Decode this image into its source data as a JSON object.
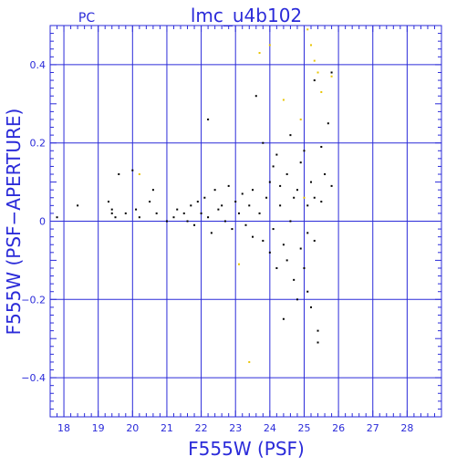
{
  "header": {
    "left_label": "PC",
    "title": "lmc_u4b102"
  },
  "colors": {
    "axis": "#2b2bd9",
    "grid": "#2b2bd9",
    "points_primary": "#000000",
    "points_secondary": "#e8c400"
  },
  "chart_data": {
    "type": "scatter",
    "title": "lmc_u4b102",
    "xlabel": "F555W (PSF)",
    "ylabel": "F555W (PSF−APERTURE)",
    "xlim": [
      17.6,
      29.0
    ],
    "ylim": [
      -0.5,
      0.5
    ],
    "xticks": [
      18,
      19,
      20,
      21,
      22,
      23,
      24,
      25,
      26,
      27,
      28
    ],
    "yticks": [
      -0.4,
      -0.2,
      0,
      0.2,
      0.4
    ],
    "ytick_labels": [
      "−0.4",
      "−0.2",
      "0",
      "0.2",
      "0.4"
    ],
    "grid": true,
    "series": [
      {
        "color": "#000000",
        "points": [
          [
            17.8,
            0.01
          ],
          [
            18.4,
            0.04
          ],
          [
            19.3,
            0.05
          ],
          [
            19.4,
            0.02
          ],
          [
            19.4,
            0.03
          ],
          [
            19.5,
            0.01
          ],
          [
            19.6,
            0.12
          ],
          [
            19.8,
            0.02
          ],
          [
            20.0,
            0.13
          ],
          [
            20.1,
            0.03
          ],
          [
            20.2,
            0.01
          ],
          [
            20.5,
            0.05
          ],
          [
            20.6,
            0.08
          ],
          [
            20.7,
            0.02
          ],
          [
            21.0,
            0.0
          ],
          [
            21.2,
            0.01
          ],
          [
            21.3,
            0.03
          ],
          [
            21.5,
            0.02
          ],
          [
            21.6,
            0.0
          ],
          [
            21.7,
            0.04
          ],
          [
            21.8,
            -0.01
          ],
          [
            21.9,
            0.05
          ],
          [
            22.0,
            0.02
          ],
          [
            22.1,
            0.06
          ],
          [
            22.2,
            0.26
          ],
          [
            22.2,
            0.01
          ],
          [
            22.3,
            -0.03
          ],
          [
            22.4,
            0.08
          ],
          [
            22.5,
            0.03
          ],
          [
            22.6,
            0.04
          ],
          [
            22.7,
            0.0
          ],
          [
            22.8,
            0.09
          ],
          [
            22.9,
            -0.02
          ],
          [
            23.0,
            0.05
          ],
          [
            23.1,
            0.02
          ],
          [
            23.2,
            0.07
          ],
          [
            23.3,
            -0.01
          ],
          [
            23.4,
            0.04
          ],
          [
            23.5,
            0.08
          ],
          [
            23.5,
            -0.04
          ],
          [
            23.6,
            0.32
          ],
          [
            23.7,
            0.02
          ],
          [
            23.8,
            0.2
          ],
          [
            23.8,
            -0.05
          ],
          [
            23.9,
            0.06
          ],
          [
            24.0,
            0.1
          ],
          [
            24.0,
            -0.08
          ],
          [
            24.1,
            0.14
          ],
          [
            24.1,
            -0.02
          ],
          [
            24.2,
            0.17
          ],
          [
            24.2,
            -0.12
          ],
          [
            24.3,
            0.04
          ],
          [
            24.3,
            0.09
          ],
          [
            24.4,
            -0.06
          ],
          [
            24.4,
            -0.25
          ],
          [
            24.5,
            0.12
          ],
          [
            24.5,
            -0.1
          ],
          [
            24.6,
            0.0
          ],
          [
            24.6,
            0.22
          ],
          [
            24.7,
            -0.15
          ],
          [
            24.7,
            0.06
          ],
          [
            24.8,
            -0.2
          ],
          [
            24.8,
            0.08
          ],
          [
            24.9,
            0.15
          ],
          [
            24.9,
            -0.07
          ],
          [
            25.0,
            -0.12
          ],
          [
            25.0,
            0.18
          ],
          [
            25.1,
            -0.18
          ],
          [
            25.1,
            0.04
          ],
          [
            25.1,
            -0.03
          ],
          [
            25.2,
            0.1
          ],
          [
            25.2,
            -0.22
          ],
          [
            25.3,
            0.06
          ],
          [
            25.3,
            -0.05
          ],
          [
            25.3,
            0.36
          ],
          [
            25.4,
            -0.28
          ],
          [
            25.4,
            -0.31
          ],
          [
            25.5,
            0.05
          ],
          [
            25.5,
            0.19
          ],
          [
            25.6,
            0.12
          ],
          [
            25.7,
            0.25
          ],
          [
            25.8,
            0.38
          ],
          [
            25.8,
            0.09
          ]
        ]
      },
      {
        "color": "#e8c400",
        "points": [
          [
            20.2,
            0.12
          ],
          [
            23.1,
            -0.11
          ],
          [
            23.4,
            -0.36
          ],
          [
            23.7,
            0.43
          ],
          [
            24.0,
            0.45
          ],
          [
            24.4,
            0.31
          ],
          [
            24.9,
            0.26
          ],
          [
            25.0,
            0.06
          ],
          [
            25.1,
            0.49
          ],
          [
            25.2,
            0.45
          ],
          [
            25.3,
            0.41
          ],
          [
            25.4,
            0.38
          ],
          [
            25.5,
            0.33
          ],
          [
            25.8,
            0.37
          ]
        ]
      }
    ]
  }
}
